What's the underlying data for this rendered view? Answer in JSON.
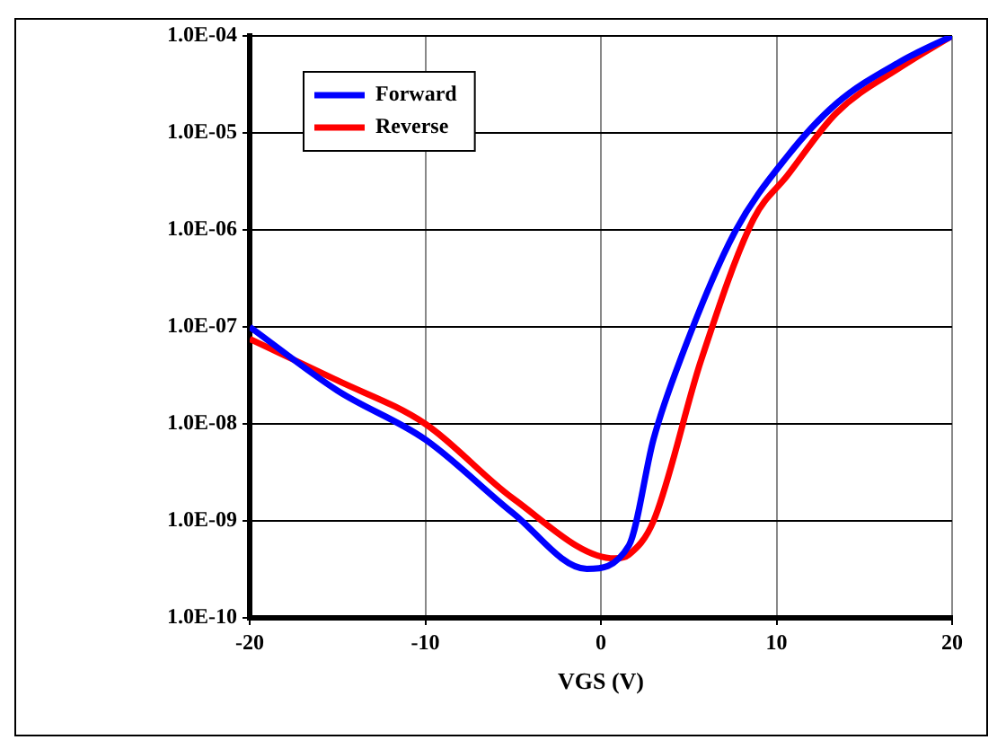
{
  "chart_data": {
    "type": "line",
    "xlabel": "VGS (V)",
    "xlim": [
      -20,
      20
    ],
    "xticks": [
      -20,
      -10,
      0,
      10,
      20
    ],
    "ylim": [
      1e-10,
      0.0001
    ],
    "log": "y",
    "yticks": [
      {
        "value": 1e-10,
        "label": "1.0E-10"
      },
      {
        "value": 1e-09,
        "label": "1.0E-09"
      },
      {
        "value": 1e-08,
        "label": "1.0E-08"
      },
      {
        "value": 1e-07,
        "label": "1.0E-07"
      },
      {
        "value": 1e-06,
        "label": "1.0E-06"
      },
      {
        "value": 1e-05,
        "label": "1.0E-05"
      },
      {
        "value": 0.0001,
        "label": "1.0E-04"
      }
    ],
    "grid": true,
    "legend": "top left",
    "marker": "none",
    "line_style": "solid",
    "series": [
      {
        "name": "Forward",
        "color": "#0000ff",
        "x": [
          -20,
          -15,
          -10,
          -5,
          -0.8,
          1.6,
          3,
          4.6,
          7.6,
          10.6,
          13.4,
          17.1,
          20
        ],
        "values": [
          1e-07,
          2.2e-08,
          6.9e-09,
          1.2e-09,
          3.2e-10,
          5.6e-10,
          7e-09,
          5e-08,
          9.3e-07,
          5.7e-06,
          2e-05,
          5.5e-05,
          0.0001
        ]
      },
      {
        "name": "Reverse",
        "color": "#ff0000",
        "x": [
          -20,
          -15,
          -10,
          -5,
          0.8,
          1.6,
          3,
          5.7,
          8.7,
          10.6,
          13.4,
          17.1,
          20
        ],
        "values": [
          7.5e-08,
          2.8e-08,
          1e-08,
          1.7e-09,
          4.1e-10,
          4.5e-10,
          1e-09,
          4.5e-08,
          1.3e-06,
          3.6e-06,
          1.6e-05,
          4.8e-05,
          0.0001
        ]
      }
    ]
  }
}
